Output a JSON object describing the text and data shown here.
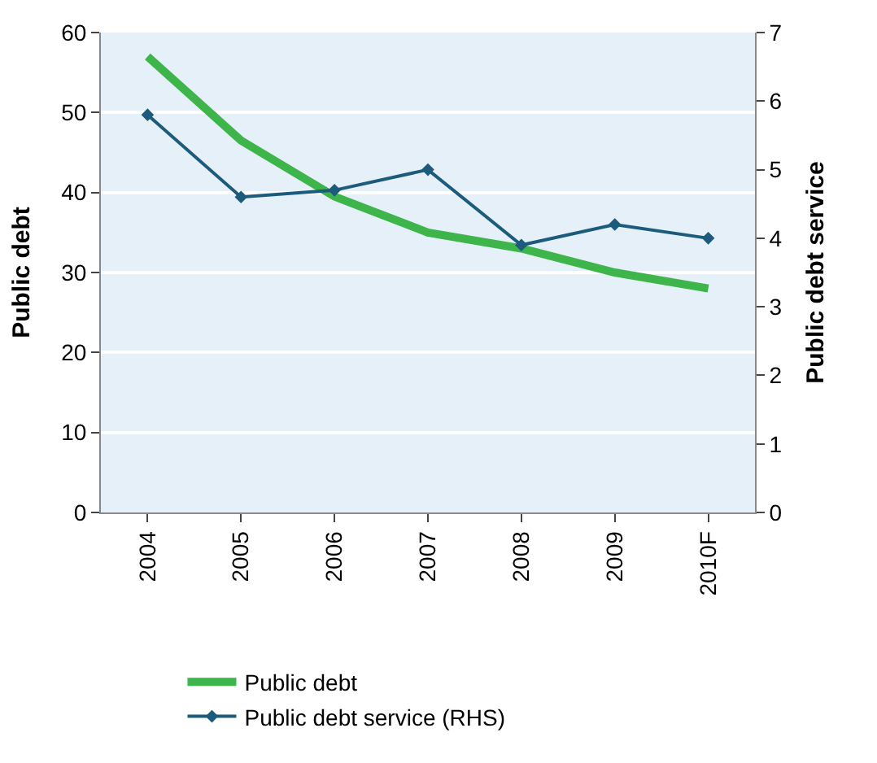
{
  "chart_data": {
    "type": "line",
    "ylabel": "Public debt",
    "y2label": "Public debt service",
    "categories": [
      "2004",
      "2005",
      "2006",
      "2007",
      "2008",
      "2009",
      "2010F"
    ],
    "series": [
      {
        "name": "Public debt",
        "color": "#3db54a",
        "values": [
          57,
          46.5,
          39.5,
          35,
          33,
          30,
          28
        ],
        "marker": "none"
      },
      {
        "name": "Public debt service (RHS)",
        "color": "#1c5b7c",
        "values": [
          5.8,
          4.6,
          4.7,
          5.0,
          3.9,
          4.2,
          4.0
        ],
        "axis": "y2",
        "marker": "diamond"
      }
    ],
    "ylim": [
      0,
      60
    ],
    "yticks": [
      0,
      10,
      20,
      30,
      40,
      50,
      60
    ],
    "y2lim": [
      0,
      7
    ],
    "y2ticks": [
      0,
      1,
      2,
      3,
      4,
      5,
      6,
      7
    ],
    "grid": "y",
    "legend": "bottom",
    "line_style": "solid"
  }
}
